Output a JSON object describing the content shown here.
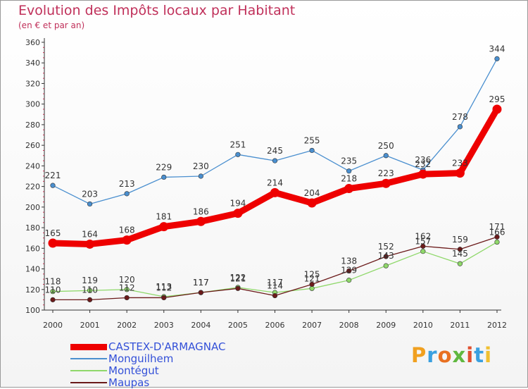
{
  "header": {
    "title": "Evolution des Impôts locaux par Habitant",
    "subtitle": "(en € et par an)"
  },
  "logo": {
    "text": "Proxiti",
    "colors": [
      "#f0a020",
      "#3aa0e0",
      "#e87020",
      "#60b840",
      "#e05030",
      "#3aa0e0",
      "#f0c030"
    ]
  },
  "chart_data": {
    "type": "line",
    "title": "Evolution des Impôts locaux par Habitant",
    "subtitle": "(en € et par an)",
    "xlabel": "",
    "ylabel": "",
    "x": [
      "2000",
      "2001",
      "2002",
      "2003",
      "2004",
      "2005",
      "2006",
      "2007",
      "2008",
      "2009",
      "2010",
      "2011",
      "2012"
    ],
    "ylim": [
      100,
      360
    ],
    "yticks": [
      100,
      120,
      140,
      160,
      180,
      200,
      220,
      240,
      260,
      280,
      300,
      320,
      340,
      360
    ],
    "grid": false,
    "legend_position": "bottom-left",
    "series": [
      {
        "name": "CASTEX-D'ARMAGNAC",
        "color": "#ee0000",
        "emphasis": true,
        "values": [
          165,
          164,
          168,
          181,
          186,
          194,
          214,
          204,
          218,
          223,
          232,
          233,
          295
        ]
      },
      {
        "name": "Monguilhem",
        "color": "#4a8fcf",
        "emphasis": false,
        "values": [
          221,
          203,
          213,
          229,
          230,
          251,
          245,
          255,
          235,
          250,
          236,
          278,
          344
        ]
      },
      {
        "name": "Montégut",
        "color": "#8fd86a",
        "emphasis": false,
        "values": [
          118,
          119,
          120,
          113,
          117,
          122,
          117,
          121,
          129,
          143,
          157,
          145,
          166
        ]
      },
      {
        "name": "Maupas",
        "color": "#6b1a1a",
        "emphasis": false,
        "values": [
          110,
          110,
          112,
          112,
          117,
          121,
          114,
          125,
          138,
          152,
          162,
          159,
          171
        ]
      }
    ]
  }
}
